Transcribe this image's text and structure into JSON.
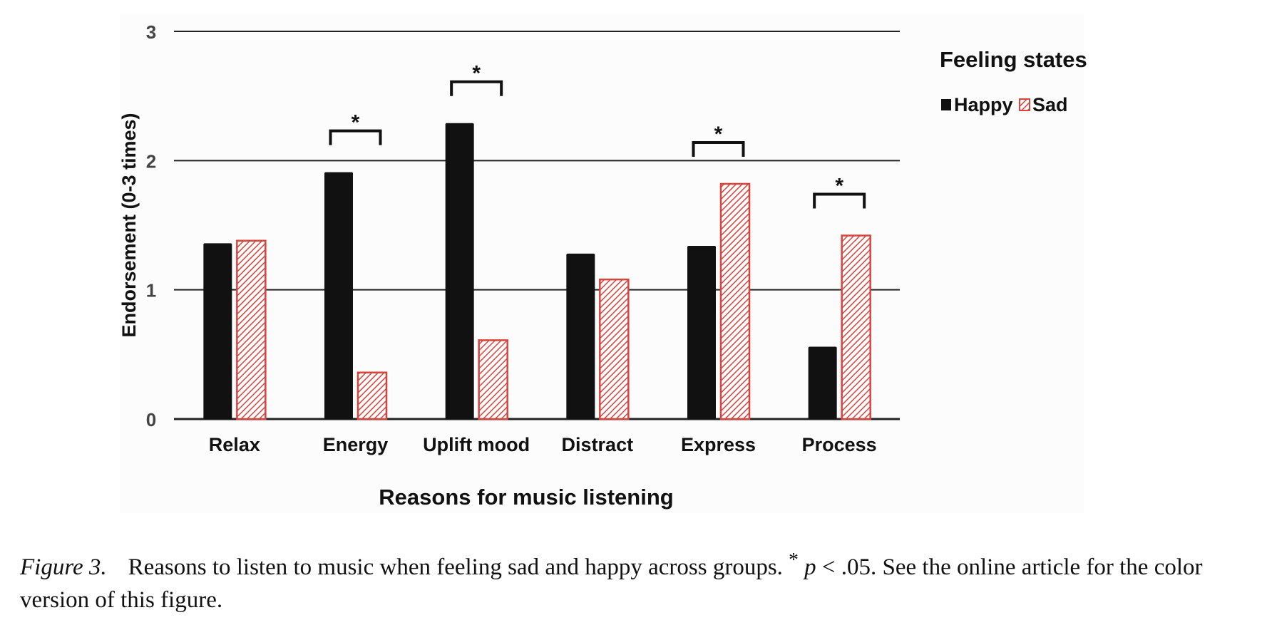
{
  "chart_data": {
    "type": "bar",
    "title": "",
    "xlabel": "Reasons for music listening",
    "ylabel": "Endorsement  (0-3 times)",
    "ylim": [
      0,
      3
    ],
    "yticks": [
      "0",
      "1",
      "2",
      "3"
    ],
    "grid": true,
    "legend": {
      "title": "Feeling states",
      "placement": "top-right"
    },
    "categories": [
      "Relax",
      "Energy",
      "Uplift mood",
      "Distract",
      "Express",
      "Process"
    ],
    "series": [
      {
        "name": "Happy",
        "color": "#111111",
        "pattern": "solid",
        "values": [
          1.36,
          1.91,
          2.29,
          1.28,
          1.34,
          0.56
        ]
      },
      {
        "name": "Sad",
        "color": "#d9433c",
        "pattern": "hatched",
        "values": [
          1.38,
          0.36,
          0.61,
          1.08,
          1.82,
          1.42
        ]
      }
    ],
    "significance": {
      "marker": "*",
      "categories": [
        "Energy",
        "Uplift mood",
        "Express",
        "Process"
      ]
    }
  },
  "caption": {
    "figure_label": "Figure 3.",
    "text_before": "Reasons to listen to music when feeling sad and happy across groups. ",
    "star": "*",
    "p_symbol": "p",
    "text_after": " < .05. See the online article for the color version of this figure."
  }
}
